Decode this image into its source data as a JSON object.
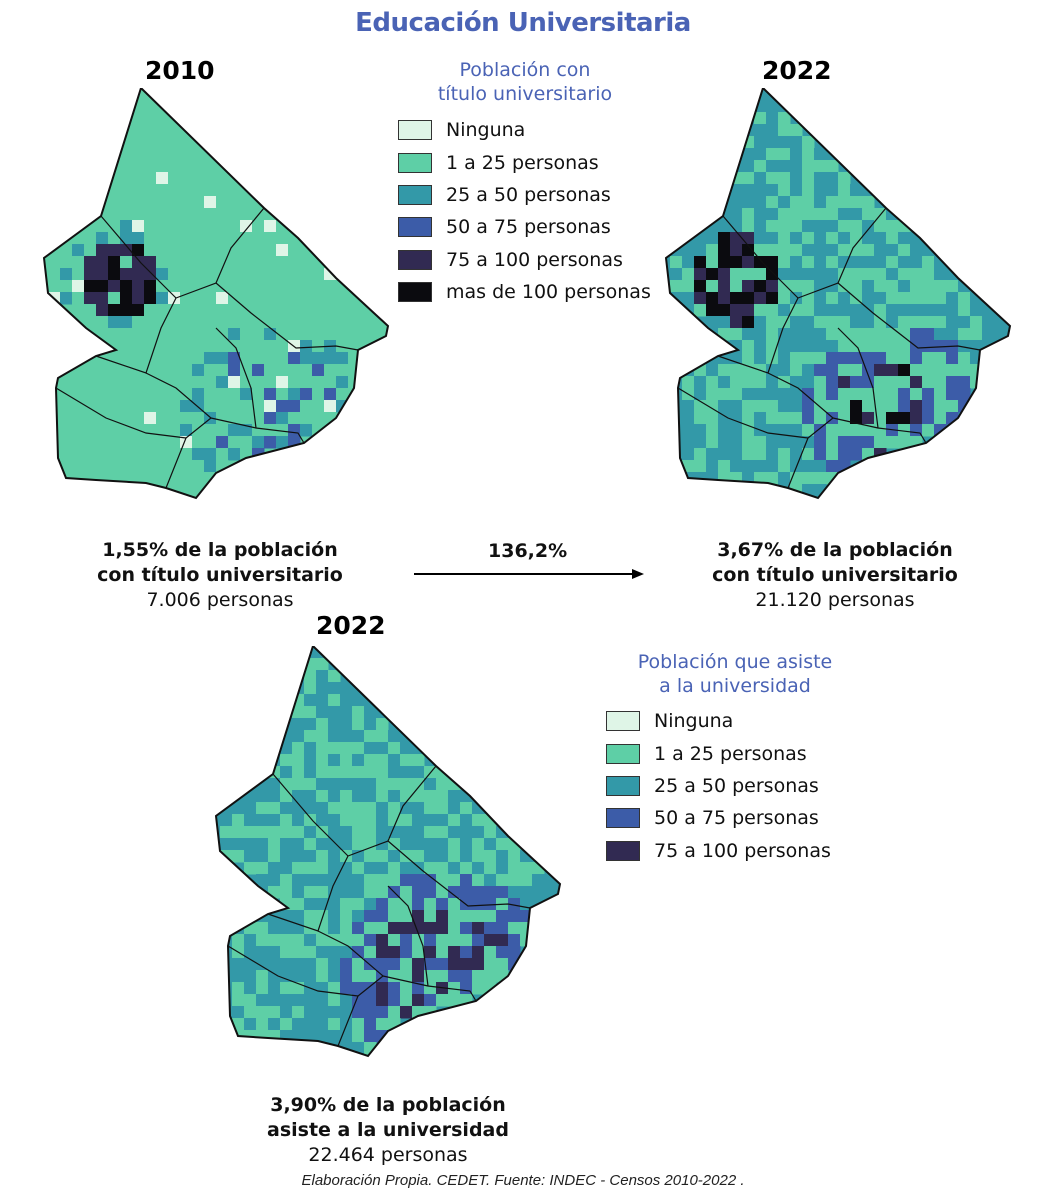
{
  "title": "Educación Universitaria",
  "colors": {
    "title": "#4a63b5",
    "ninguna": "#dff5e7",
    "c1_25": "#5ecfa6",
    "c25_50": "#3399a8",
    "c50_75": "#3c5ca8",
    "c75_100": "#312a52",
    "c100plus": "#0b0b0f",
    "border": "#111111"
  },
  "maps": {
    "map2010": {
      "year": "2010",
      "caption_bold_1": "1,55% de la población",
      "caption_bold_2": "con título universitario",
      "caption_count": "7.006 personas"
    },
    "map2022": {
      "year": "2022",
      "caption_bold_1": "3,67% de la población",
      "caption_bold_2": "con título universitario",
      "caption_count": "21.120 personas"
    },
    "map2022b": {
      "year": "2022",
      "caption_bold_1": "3,90% de la población",
      "caption_bold_2": "asiste a la universidad",
      "caption_count": "22.464 personas"
    }
  },
  "growth": "136,2%",
  "legend_titulo": {
    "title_1": "Población con",
    "title_2": "título universitario",
    "items": [
      {
        "label": "Ninguna",
        "color": "#dff5e7"
      },
      {
        "label": "1 a 25 personas",
        "color": "#5ecfa6"
      },
      {
        "label": "25 a 50 personas",
        "color": "#3399a8"
      },
      {
        "label": "50 a 75 personas",
        "color": "#3c5ca8"
      },
      {
        "label": "75 a 100 personas",
        "color": "#312a52"
      },
      {
        "label": "mas de 100 personas",
        "color": "#0b0b0f"
      }
    ]
  },
  "legend_asiste": {
    "title_1": "Población que asiste",
    "title_2": "a la universidad",
    "items": [
      {
        "label": "Ninguna",
        "color": "#dff5e7"
      },
      {
        "label": "1 a 25 personas",
        "color": "#5ecfa6"
      },
      {
        "label": "25 a 50 personas",
        "color": "#3399a8"
      },
      {
        "label": "50 a 75 personas",
        "color": "#3c5ca8"
      },
      {
        "label": "75 a 100 personas",
        "color": "#312a52"
      }
    ]
  },
  "footer": "Elaboración Propia. CEDET. Fuente: INDEC - Censos 2010-2022 ."
}
